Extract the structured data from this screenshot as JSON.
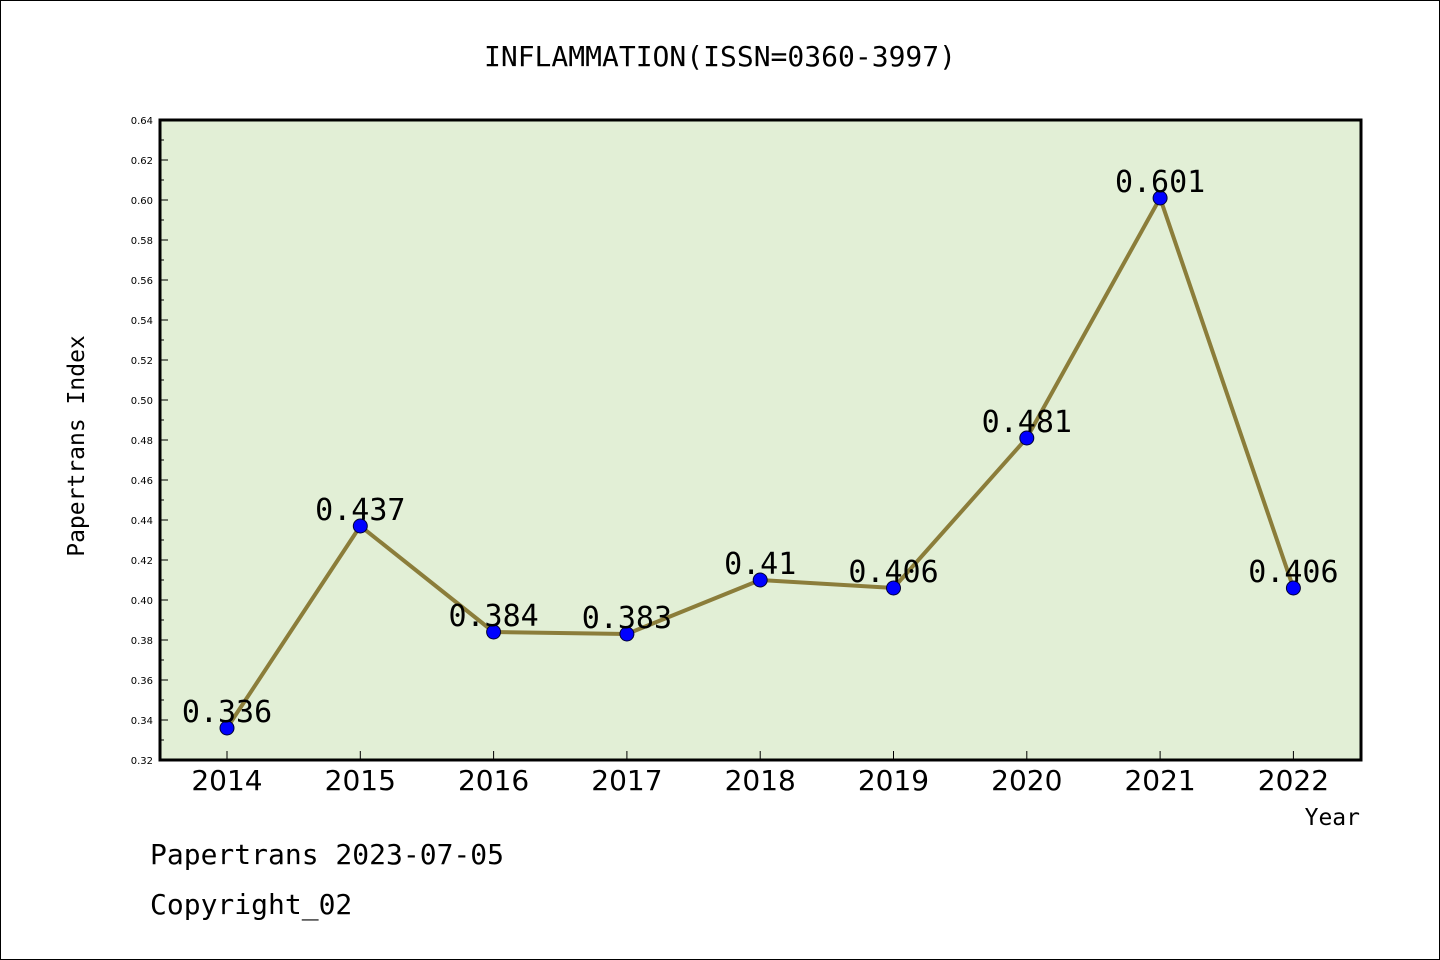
{
  "chart_data": {
    "type": "line",
    "title": "INFLAMMATION(ISSN=0360-3997)",
    "xlabel": "Year",
    "ylabel": "Papertrans Index",
    "categories": [
      "2014",
      "2015",
      "2016",
      "2017",
      "2018",
      "2019",
      "2020",
      "2021",
      "2022"
    ],
    "values": [
      0.336,
      0.437,
      0.384,
      0.383,
      0.41,
      0.406,
      0.481,
      0.601,
      0.406
    ],
    "data_labels": [
      "0.336",
      "0.437",
      "0.384",
      "0.383",
      "0.41",
      "0.406",
      "0.481",
      "0.601",
      "0.406"
    ],
    "ylim": [
      0.32,
      0.64
    ],
    "yticks": [
      "0.32",
      "0.34",
      "0.36",
      "0.38",
      "0.40",
      "0.42",
      "0.44",
      "0.46",
      "0.48",
      "0.50",
      "0.52",
      "0.54",
      "0.56",
      "0.58",
      "0.60",
      "0.62",
      "0.64"
    ],
    "grid": false,
    "colors": {
      "plot_background": "#e2efd6",
      "line": "#8b7d3a",
      "marker": "#0000ff"
    }
  },
  "footer": {
    "line1": "Papertrans 2023-07-05",
    "line2": "Copyright_02"
  }
}
